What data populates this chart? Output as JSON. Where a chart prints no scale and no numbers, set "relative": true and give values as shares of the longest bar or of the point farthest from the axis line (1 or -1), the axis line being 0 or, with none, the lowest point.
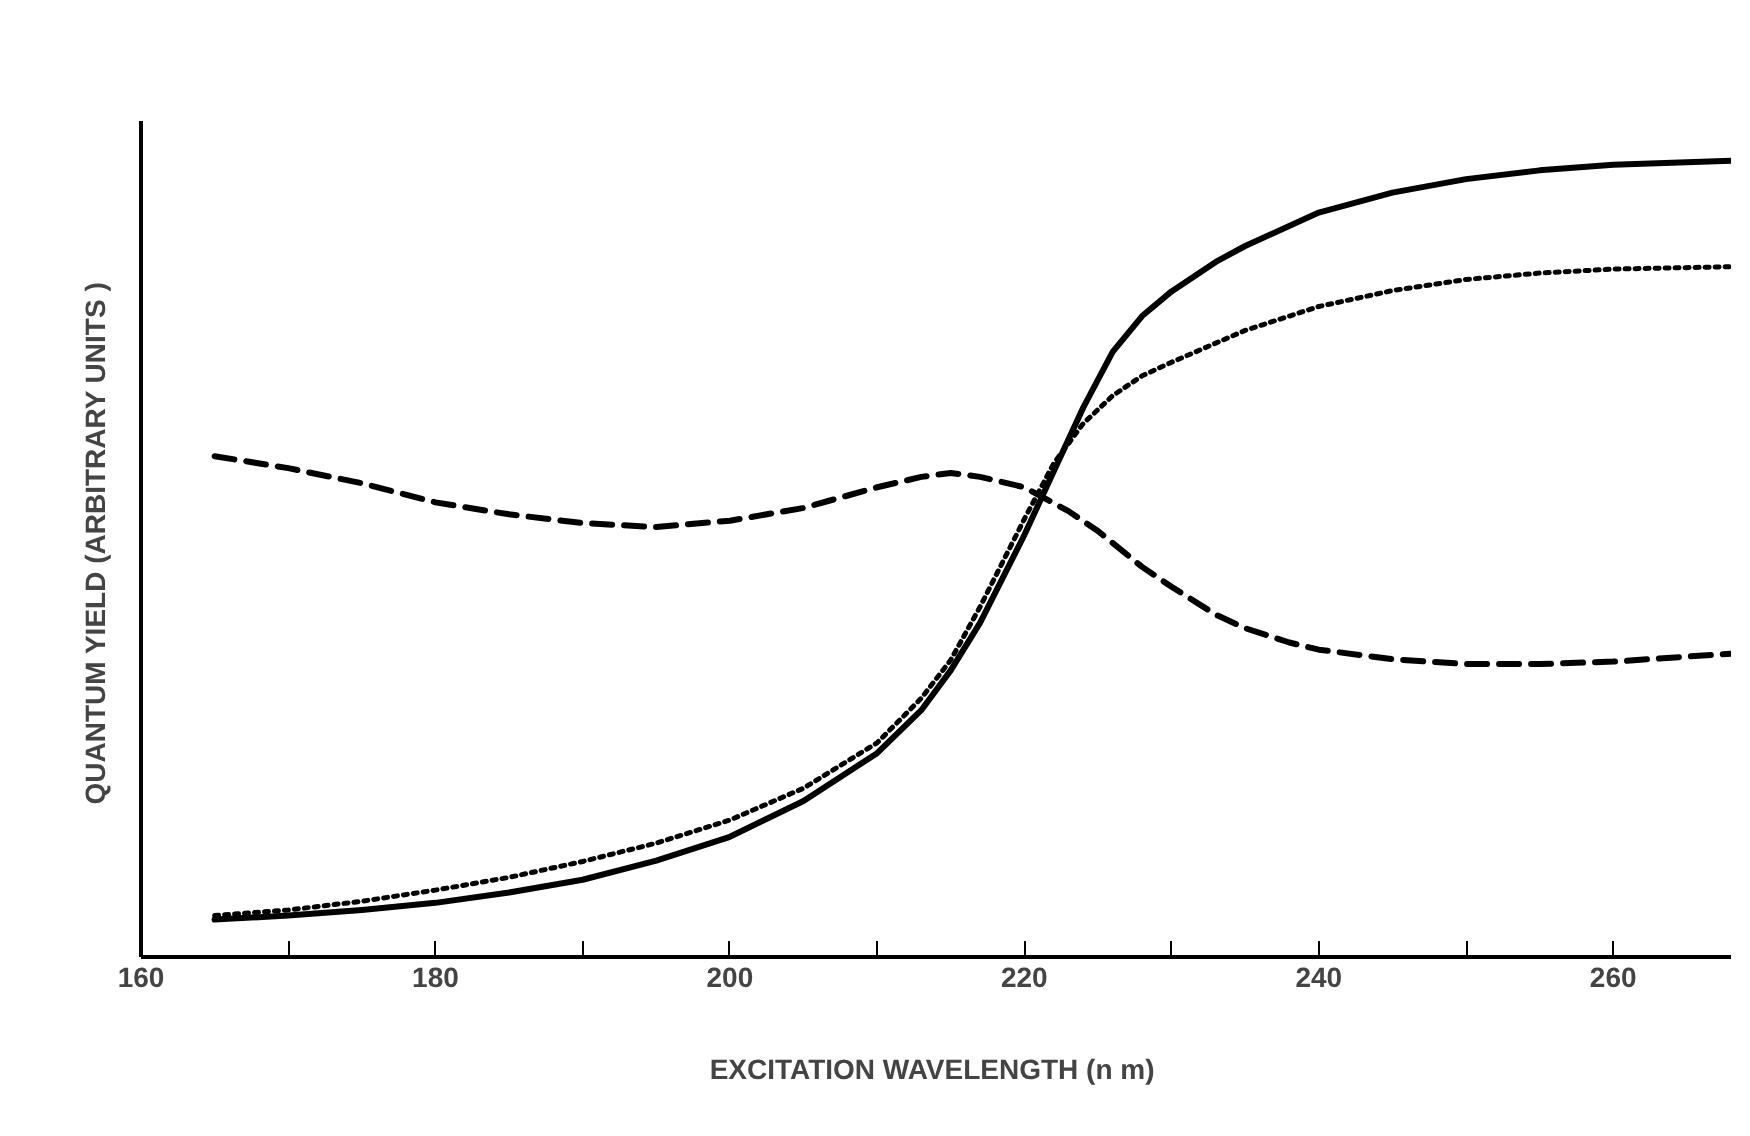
{
  "chart_data": {
    "type": "line",
    "relative": true,
    "xlabel": "EXCITATION  WAVELENGTH (n m)",
    "ylabel": "QUANTUM  YIELD (ARBITRARY UNITS )",
    "xlim": [
      160,
      268
    ],
    "xticks": [
      160,
      {
        "value": 170,
        "label": null
      },
      180,
      {
        "value": 190,
        "label": null
      },
      200,
      {
        "value": 210,
        "label": null
      },
      220,
      {
        "value": 230,
        "label": null
      },
      240,
      {
        "value": 250,
        "label": null
      },
      260
    ],
    "series": [
      {
        "color": "#000000",
        "line_style": "solid",
        "x": [
          165,
          170,
          175,
          180,
          185,
          190,
          195,
          200,
          205,
          210,
          213,
          215,
          217,
          220,
          222,
          224,
          226,
          228,
          230,
          233,
          235,
          240,
          245,
          250,
          255,
          260,
          268
        ],
        "values": [
          0.047,
          0.052,
          0.059,
          0.068,
          0.081,
          0.097,
          0.121,
          0.151,
          0.196,
          0.256,
          0.31,
          0.36,
          0.42,
          0.53,
          0.61,
          0.69,
          0.76,
          0.805,
          0.836,
          0.873,
          0.893,
          0.935,
          0.96,
          0.977,
          0.988,
          0.995,
          1.0
        ]
      },
      {
        "color": "#000000",
        "line_style": "dotted",
        "x": [
          165,
          170,
          175,
          180,
          185,
          190,
          195,
          200,
          205,
          210,
          213,
          215,
          217,
          220,
          222,
          224,
          226,
          228,
          230,
          235,
          240,
          245,
          250,
          255,
          260,
          268
        ],
        "values": [
          0.052,
          0.059,
          0.07,
          0.084,
          0.1,
          0.12,
          0.143,
          0.172,
          0.212,
          0.269,
          0.325,
          0.373,
          0.44,
          0.55,
          0.62,
          0.67,
          0.705,
          0.73,
          0.747,
          0.787,
          0.817,
          0.837,
          0.851,
          0.859,
          0.864,
          0.867
        ]
      },
      {
        "color": "#000000",
        "line_style": "dashed",
        "x": [
          165,
          170,
          175,
          180,
          185,
          190,
          195,
          200,
          205,
          210,
          213,
          215,
          217,
          220,
          223,
          225,
          228,
          230,
          233,
          235,
          238,
          240,
          245,
          250,
          255,
          260,
          268
        ],
        "values": [
          0.629,
          0.614,
          0.595,
          0.571,
          0.556,
          0.545,
          0.54,
          0.548,
          0.564,
          0.59,
          0.603,
          0.608,
          0.603,
          0.59,
          0.56,
          0.535,
          0.49,
          0.465,
          0.43,
          0.413,
          0.395,
          0.386,
          0.374,
          0.368,
          0.368,
          0.371,
          0.381
        ]
      }
    ]
  }
}
